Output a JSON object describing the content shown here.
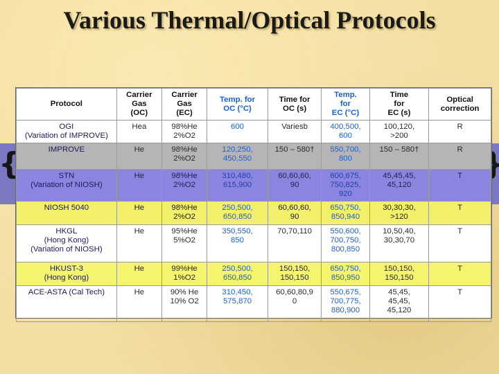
{
  "slide": {
    "title": "Various Thermal/Optical Protocols"
  },
  "decor": {
    "brace_left": "{",
    "brace_right": "}"
  },
  "table": {
    "headers": [
      [
        "Protocol"
      ],
      [
        "Carrier",
        "Gas",
        "(OC)"
      ],
      [
        "Carrier",
        "Gas",
        "(EC)"
      ],
      [
        "Temp. for",
        "OC (°C)"
      ],
      [
        "Time for",
        "OC (s)"
      ],
      [
        "Temp.",
        "for",
        "EC (°C)"
      ],
      [
        "Time",
        "for",
        "EC (s)"
      ],
      [
        "Optical",
        "correction"
      ]
    ],
    "rows": [
      {
        "protocol": [
          "OGI",
          "(Variation of IMPROVE)"
        ],
        "gas_oc": "Hea",
        "gas_ec": [
          "98%He",
          "2%O2"
        ],
        "temp_oc": [
          "600"
        ],
        "time_oc": [
          "Variesb"
        ],
        "temp_ec": [
          "400,500,",
          "600"
        ],
        "time_ec": [
          "100,120,",
          ">200"
        ],
        "correction": "R"
      },
      {
        "protocol": [
          "IMPROVE"
        ],
        "gas_oc": "He",
        "gas_ec": [
          "98%He",
          "2%O2"
        ],
        "temp_oc": [
          "120,250,",
          "450,550"
        ],
        "time_oc": [
          "150 – 580†"
        ],
        "temp_ec": [
          "550,700,",
          "800"
        ],
        "time_ec": [
          "150 – 580†"
        ],
        "correction": "R"
      },
      {
        "protocol": [
          "STN",
          "(Variation of NIOSH)"
        ],
        "gas_oc": "He",
        "gas_ec": [
          "98%He",
          "2%O2"
        ],
        "temp_oc": [
          "310,480,",
          "615,900"
        ],
        "time_oc": [
          "60,60,60,",
          "90"
        ],
        "temp_ec": [
          "600,675,",
          "750,825,",
          "920"
        ],
        "time_ec": [
          "45,45,45,",
          "45,120"
        ],
        "correction": "T"
      },
      {
        "protocol": [
          "NIOSH 5040"
        ],
        "gas_oc": "He",
        "gas_ec": [
          "98%He",
          "2%O2"
        ],
        "temp_oc": [
          "250,500,",
          "650,850"
        ],
        "time_oc": [
          "60,60,60,",
          "90"
        ],
        "temp_ec": [
          "650,750,",
          "850,940"
        ],
        "time_ec": [
          "30,30,30,",
          ">120"
        ],
        "correction": "T"
      },
      {
        "protocol": [
          "HKGL",
          "(Hong Kong)",
          "(Variation of NIOSH)"
        ],
        "gas_oc": "He",
        "gas_ec": [
          "95%He",
          "5%O2"
        ],
        "temp_oc": [
          "350,550,",
          "850"
        ],
        "time_oc": [
          "70,70,110"
        ],
        "temp_ec": [
          "550,600,",
          "700,750,",
          "800,850"
        ],
        "time_ec": [
          "10,50,40,",
          "30,30,70"
        ],
        "correction": "T"
      },
      {
        "protocol": [
          "HKUST-3",
          "(Hong Kong)"
        ],
        "gas_oc": "He",
        "gas_ec": [
          "99%He",
          "1%O2"
        ],
        "temp_oc": [
          "250,500,",
          "650,850"
        ],
        "time_oc": [
          "150,150,",
          "150,150"
        ],
        "temp_ec": [
          "650,750,",
          "850,950"
        ],
        "time_ec": [
          "150,150,",
          "150,150"
        ],
        "correction": "T"
      },
      {
        "protocol": [
          "ACE-ASTA (Cal Tech)"
        ],
        "gas_oc": "He",
        "gas_ec": [
          "90% He",
          "10% O2"
        ],
        "temp_oc": [
          "310,450,",
          "575,870"
        ],
        "time_oc": [
          "60,60,80,9",
          "0"
        ],
        "temp_ec": [
          "550,675,",
          "700,775,",
          "880,900"
        ],
        "time_ec": [
          "45,45,",
          "45,45,",
          "45,120"
        ],
        "correction": "T"
      }
    ]
  }
}
